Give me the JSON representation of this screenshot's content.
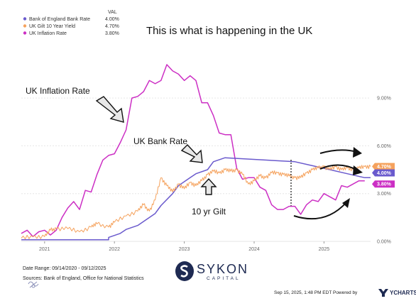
{
  "chart_data": {
    "type": "line",
    "title": "This is what is happening in the UK",
    "legend": {
      "header": "VAL",
      "placement": "top-left",
      "entries": [
        {
          "name": "Bank of England Bank Rate",
          "value": "4.00%",
          "color": "#6a5acd"
        },
        {
          "name": "UK Gilt 10 Year Yield",
          "value": "4.70%",
          "color": "#f5a25d"
        },
        {
          "name": "UK Inflation Rate",
          "value": "3.80%",
          "color": "#cc2fc4"
        }
      ]
    },
    "x_range": [
      "2020-09",
      "2025-09"
    ],
    "ylim": [
      0,
      11.5
    ],
    "y_ticks": [
      "0.00%",
      "3.00%",
      "6.00%",
      "9.00%"
    ],
    "x_ticks": [
      "2021",
      "2022",
      "2023",
      "2024",
      "2025"
    ],
    "grid": true,
    "series": [
      {
        "name": "UK Inflation Rate",
        "color": "#cc2fc4",
        "points": [
          [
            "2020-09",
            0.5
          ],
          [
            "2020-10",
            0.7
          ],
          [
            "2020-11",
            0.3
          ],
          [
            "2020-12",
            0.6
          ],
          [
            "2021-01",
            0.7
          ],
          [
            "2021-02",
            0.4
          ],
          [
            "2021-03",
            0.7
          ],
          [
            "2021-04",
            1.5
          ],
          [
            "2021-05",
            2.1
          ],
          [
            "2021-06",
            2.5
          ],
          [
            "2021-07",
            2.0
          ],
          [
            "2021-08",
            3.2
          ],
          [
            "2021-09",
            3.1
          ],
          [
            "2021-10",
            4.2
          ],
          [
            "2021-11",
            5.1
          ],
          [
            "2021-12",
            5.4
          ],
          [
            "2022-01",
            5.5
          ],
          [
            "2022-02",
            6.2
          ],
          [
            "2022-03",
            7.0
          ],
          [
            "2022-04",
            9.0
          ],
          [
            "2022-05",
            9.1
          ],
          [
            "2022-06",
            9.4
          ],
          [
            "2022-07",
            10.1
          ],
          [
            "2022-08",
            9.9
          ],
          [
            "2022-09",
            10.1
          ],
          [
            "2022-10",
            11.1
          ],
          [
            "2022-11",
            10.7
          ],
          [
            "2022-12",
            10.5
          ],
          [
            "2023-01",
            10.1
          ],
          [
            "2023-02",
            10.4
          ],
          [
            "2023-03",
            10.1
          ],
          [
            "2023-04",
            8.7
          ],
          [
            "2023-05",
            8.7
          ],
          [
            "2023-06",
            7.9
          ],
          [
            "2023-07",
            6.8
          ],
          [
            "2023-08",
            6.7
          ],
          [
            "2023-09",
            6.7
          ],
          [
            "2023-10",
            4.6
          ],
          [
            "2023-11",
            3.9
          ],
          [
            "2023-12",
            4.0
          ],
          [
            "2024-01",
            4.0
          ],
          [
            "2024-02",
            3.4
          ],
          [
            "2024-03",
            3.2
          ],
          [
            "2024-04",
            2.3
          ],
          [
            "2024-05",
            2.0
          ],
          [
            "2024-06",
            2.0
          ],
          [
            "2024-07",
            2.2
          ],
          [
            "2024-08",
            2.2
          ],
          [
            "2024-09",
            1.7
          ],
          [
            "2024-10",
            2.3
          ],
          [
            "2024-11",
            2.6
          ],
          [
            "2024-12",
            2.5
          ],
          [
            "2025-01",
            3.0
          ],
          [
            "2025-02",
            2.8
          ],
          [
            "2025-03",
            2.6
          ],
          [
            "2025-04",
            3.5
          ],
          [
            "2025-05",
            3.4
          ],
          [
            "2025-06",
            3.6
          ],
          [
            "2025-07",
            3.8
          ],
          [
            "2025-08",
            3.8
          ]
        ]
      },
      {
        "name": "Bank of England Bank Rate",
        "color": "#6a5acd",
        "points": [
          [
            "2020-09",
            0.1
          ],
          [
            "2021-12",
            0.1
          ],
          [
            "2021-12",
            0.25
          ],
          [
            "2022-02",
            0.5
          ],
          [
            "2022-03",
            0.75
          ],
          [
            "2022-05",
            1.0
          ],
          [
            "2022-06",
            1.25
          ],
          [
            "2022-08",
            1.75
          ],
          [
            "2022-09",
            2.25
          ],
          [
            "2022-11",
            3.0
          ],
          [
            "2022-12",
            3.5
          ],
          [
            "2023-02",
            4.0
          ],
          [
            "2023-03",
            4.25
          ],
          [
            "2023-05",
            4.5
          ],
          [
            "2023-06",
            5.0
          ],
          [
            "2023-08",
            5.25
          ],
          [
            "2024-08",
            5.0
          ],
          [
            "2024-11",
            4.75
          ],
          [
            "2025-02",
            4.5
          ],
          [
            "2025-05",
            4.25
          ],
          [
            "2025-08",
            4.0
          ],
          [
            "2025-09",
            4.0
          ]
        ]
      },
      {
        "name": "UK Gilt 10 Year Yield",
        "color": "#f5a25d",
        "points": [
          [
            "2020-09",
            0.2
          ],
          [
            "2020-11",
            0.3
          ],
          [
            "2021-01",
            0.3
          ],
          [
            "2021-02",
            0.7
          ],
          [
            "2021-03",
            0.8
          ],
          [
            "2021-05",
            0.8
          ],
          [
            "2021-07",
            0.6
          ],
          [
            "2021-09",
            0.9
          ],
          [
            "2021-10",
            1.1
          ],
          [
            "2021-12",
            0.9
          ],
          [
            "2022-01",
            1.2
          ],
          [
            "2022-03",
            1.6
          ],
          [
            "2022-05",
            1.9
          ],
          [
            "2022-06",
            2.3
          ],
          [
            "2022-07",
            1.9
          ],
          [
            "2022-08",
            2.6
          ],
          [
            "2022-09",
            4.0
          ],
          [
            "2022-10",
            3.5
          ],
          [
            "2022-11",
            3.1
          ],
          [
            "2022-12",
            3.6
          ],
          [
            "2023-01",
            3.3
          ],
          [
            "2023-02",
            3.7
          ],
          [
            "2023-03",
            3.5
          ],
          [
            "2023-04",
            3.8
          ],
          [
            "2023-05",
            4.2
          ],
          [
            "2023-06",
            4.4
          ],
          [
            "2023-07",
            4.3
          ],
          [
            "2023-08",
            4.5
          ],
          [
            "2023-09",
            4.4
          ],
          [
            "2023-10",
            4.5
          ],
          [
            "2023-11",
            4.2
          ],
          [
            "2023-12",
            3.6
          ],
          [
            "2024-01",
            3.8
          ],
          [
            "2024-02",
            4.1
          ],
          [
            "2024-03",
            4.0
          ],
          [
            "2024-04",
            4.3
          ],
          [
            "2024-05",
            4.3
          ],
          [
            "2024-06",
            4.2
          ],
          [
            "2024-07",
            4.1
          ],
          [
            "2024-08",
            4.0
          ],
          [
            "2024-09",
            4.0
          ],
          [
            "2024-10",
            4.3
          ],
          [
            "2024-11",
            4.5
          ],
          [
            "2024-12",
            4.6
          ],
          [
            "2025-01",
            4.7
          ],
          [
            "2025-02",
            4.5
          ],
          [
            "2025-03",
            4.7
          ],
          [
            "2025-04",
            4.5
          ],
          [
            "2025-05",
            4.6
          ],
          [
            "2025-06",
            4.5
          ],
          [
            "2025-07",
            4.6
          ],
          [
            "2025-08",
            4.7
          ],
          [
            "2025-09",
            4.7
          ]
        ]
      }
    ],
    "end_labels": [
      {
        "series": "UK Gilt 10 Year Yield",
        "text": "4.70%",
        "value": 4.7,
        "color": "#f5a25d"
      },
      {
        "series": "Bank of England Bank Rate",
        "text": "4.00%",
        "value": 4.0,
        "color": "#6a5acd"
      },
      {
        "series": "UK Inflation Rate",
        "text": "3.80%",
        "value": 3.8,
        "color": "#cc2fc4"
      }
    ],
    "annotations": [
      "UK Inflation Rate",
      "UK Bank Rate",
      "10 yr Gilt"
    ]
  },
  "footer": {
    "date_range": "Date Range: 09/14/2020 - 09/12/2025",
    "sources": "Sources: Bank of England, Office for National Statistics",
    "timestamp": "Sep 15, 2025, 1:48 PM EDT Powered by",
    "ycharts": "YCHARTS"
  },
  "logo": {
    "name": "SYKON",
    "sub": "CAPITAL"
  }
}
